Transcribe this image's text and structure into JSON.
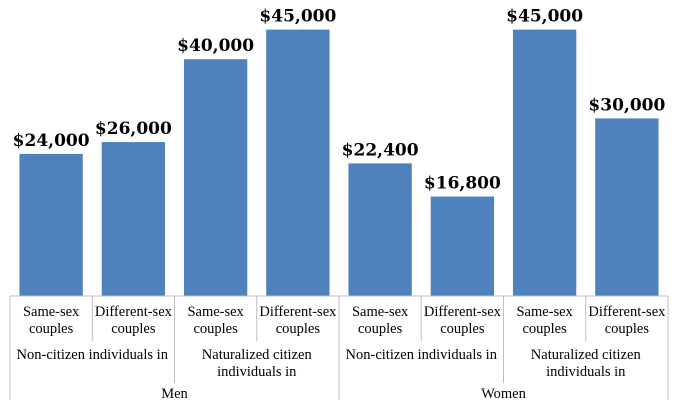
{
  "chart_data": {
    "type": "bar",
    "ylim": [
      0,
      50000
    ],
    "value_prefix": "$",
    "bar_color": "#4f81bd",
    "grid": false,
    "groups": [
      {
        "name": "Men",
        "subgroups": [
          {
            "name": "Non-citizen individuals in",
            "bars": [
              {
                "category": "Same-sex couples",
                "value": 24000,
                "label": "$24,000"
              },
              {
                "category": "Different-sex couples",
                "value": 26000,
                "label": "$26,000"
              }
            ]
          },
          {
            "name": "Naturalized citizen individuals in",
            "bars": [
              {
                "category": "Same-sex couples",
                "value": 40000,
                "label": "$40,000"
              },
              {
                "category": "Different-sex couples",
                "value": 45000,
                "label": "$45,000"
              }
            ]
          }
        ]
      },
      {
        "name": "Women",
        "subgroups": [
          {
            "name": "Non-citizen individuals in",
            "bars": [
              {
                "category": "Same-sex couples",
                "value": 22400,
                "label": "$22,400"
              },
              {
                "category": "Different-sex couples",
                "value": 16800,
                "label": "$16,800"
              }
            ]
          },
          {
            "name": "Naturalized citizen individuals in",
            "bars": [
              {
                "category": "Same-sex couples",
                "value": 45000,
                "label": "$45,000"
              },
              {
                "category": "Different-sex couples",
                "value": 30000,
                "label": "$30,000"
              }
            ]
          }
        ]
      }
    ]
  }
}
